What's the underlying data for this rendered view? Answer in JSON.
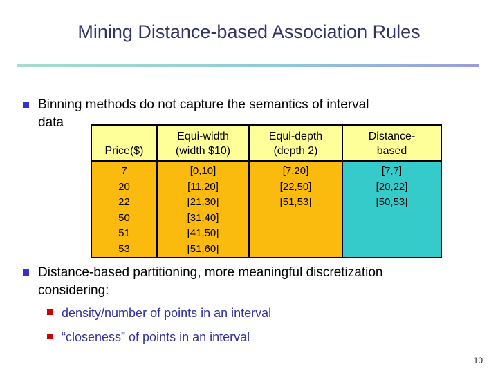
{
  "slide": {
    "title": "Mining Distance-based Association Rules",
    "page_number": "10"
  },
  "colors": {
    "title_text": "#333366",
    "rule_gradient_left": "#A6DDCD",
    "rule_gradient_right": "#9A9CDB",
    "bullet_square_blue": "#3333CC",
    "sub_bullet_square_red": "#CC0000",
    "sub_bullet_text": "#333399",
    "table_header_bg": "#FFFF99",
    "table_body_bg": "#FBBB0E",
    "table_distance_bg": "#35CBCB",
    "table_border": "#000000"
  },
  "bullet1": {
    "lines": [
      "Binning methods do not capture the semantics of interval",
      "data"
    ]
  },
  "table": {
    "columns": [
      {
        "header_line1": "",
        "header_line2": "Price($)",
        "values": [
          "7",
          "20",
          "22",
          "50",
          "51",
          "53"
        ]
      },
      {
        "header_line1": "Equi-width",
        "header_line2": "(width $10)",
        "values": [
          "[0,10]",
          "[11,20]",
          "[21,30]",
          "[31,40]",
          "[41,50]",
          "[51,60]"
        ]
      },
      {
        "header_line1": "Equi-depth",
        "header_line2": "(depth 2)",
        "values": [
          "[7,20]",
          "[22,50]",
          "[51,53]",
          "",
          "",
          ""
        ]
      },
      {
        "header_line1": "Distance-",
        "header_line2": "based",
        "values": [
          "[7,7]",
          "[20,22]",
          "[50,53]",
          "",
          "",
          ""
        ]
      }
    ]
  },
  "bullet2": {
    "lines": [
      "Distance-based partitioning, more meaningful discretization",
      "considering:"
    ]
  },
  "sub_bullets": [
    {
      "text": "density/number of points in an interval"
    },
    {
      "text": "“closeness” of points in an interval"
    }
  ]
}
